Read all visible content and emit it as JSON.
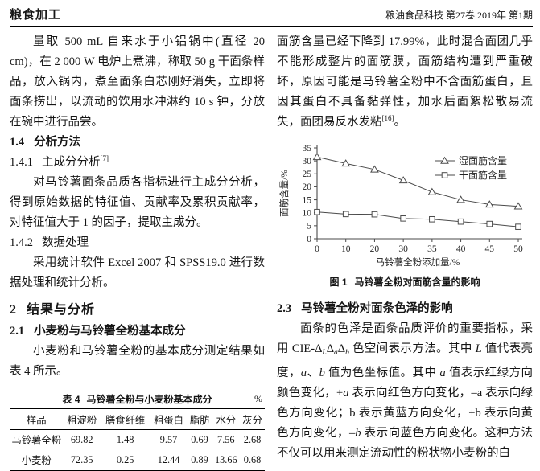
{
  "header": {
    "left": "粮食加工",
    "right": "粮油食品科技 第27卷 2019年 第1期"
  },
  "left_column": {
    "para1": "量取 500 mL 自来水于小铝锅中(直径 20 cm)，在 2 000 W 电炉上煮沸，称取 50 g 干面条样品，放入锅内，煮至面条白芯刚好消失，立即将面条捞出，以流动的饮用水冲淋约 10 s 钟，分放在碗中进行品尝。",
    "h14": {
      "num": "1.4",
      "title": "分析方法"
    },
    "h141": {
      "num": "1.4.1",
      "title": "主成分分析",
      "ref": "[7]"
    },
    "para2": "对马铃薯面条品质各指标进行主成分分析，得到原始数据的特征值、贡献率及累积贡献率，对特征值大于 1 的因子，提取主成分。",
    "h142": {
      "num": "1.4.2",
      "title": "数据处理"
    },
    "para3": "采用统计软件 Excel 2007 和 SPSS19.0 进行数据处理和统计分析。",
    "h2": {
      "num": "2",
      "title": "结果与分析"
    },
    "h21": {
      "num": "2.1",
      "title": "小麦粉与马铃薯全粉基本成分"
    },
    "para4": "小麦粉和马铃薯全粉的基本成分测定结果如表 4 所示。",
    "table": {
      "caption_label": "表 4",
      "caption_title": "马铃薯全粉与小麦粉基本成分",
      "unit": "%",
      "headers": [
        "样品",
        "粗淀粉",
        "膳食纤维",
        "粗蛋白",
        "脂肪",
        "水分",
        "灰分"
      ],
      "rows": [
        [
          "马铃薯全粉",
          "69.82",
          "1.48",
          "9.57",
          "0.69",
          "7.56",
          "2.68"
        ],
        [
          "小麦粉",
          "72.35",
          "0.25",
          "12.44",
          "0.89",
          "13.66",
          "0.68"
        ]
      ]
    }
  },
  "right_column": {
    "para1": "面筋含量已经下降到 17.99%，此时混合面团几乎不能形成整片的面筋膜，面筋结构遭到严重破坏，原因可能是马铃薯全粉中不含面筋蛋白，且因其蛋白不具备黏弹性，加水后面絮松散易流失，面团易反水发粘",
    "para1_ref": "[16]",
    "para1_end": "。",
    "figure_caption_label": "图 1",
    "figure_caption_title": "马铃薯全粉对面筋含量的影响",
    "h23": {
      "num": "2.3",
      "title": "马铃薯全粉对面条色泽的影响"
    },
    "para2_segments": [
      {
        "t": "面条的色泽是面条品质评价的重要指标，采用 CIE-Δ"
      },
      {
        "t": "L",
        "s": "sub"
      },
      {
        "t": "Δ"
      },
      {
        "t": "a",
        "s": "sub"
      },
      {
        "t": "Δ"
      },
      {
        "t": "b",
        "s": "sub"
      },
      {
        "t": " 色空间表示方法。其中 "
      },
      {
        "t": "L",
        "s": "i"
      },
      {
        "t": " 值代表亮度，"
      },
      {
        "t": "a",
        "s": "i"
      },
      {
        "t": "、"
      },
      {
        "t": "b",
        "s": "i"
      },
      {
        "t": " 值为色坐标值。其中 "
      },
      {
        "t": "a",
        "s": "i"
      },
      {
        "t": " 值表示红绿方向颜色变化，+"
      },
      {
        "t": "a",
        "s": "i"
      },
      {
        "t": " 表示向红色方向变化，–a 表示向绿色方向变化；b 表示黄蓝方向变化，+b 表示向黄色方向变化，–"
      },
      {
        "t": "b",
        "s": "i"
      },
      {
        "t": " 表示向蓝色方向变化。这种方法不仅可以用来测定流动性的粉状物小麦粉的白"
      }
    ]
  },
  "chart_data": {
    "type": "line",
    "title": "",
    "categories": [
      "0",
      "10",
      "20",
      "30",
      "35",
      "40",
      "45",
      "50"
    ],
    "series": [
      {
        "name": "湿面筋含量",
        "marker": "triangle",
        "values": [
          31.5,
          29.0,
          26.7,
          22.5,
          17.99,
          15.0,
          13.2,
          12.5
        ]
      },
      {
        "name": "干面筋含量",
        "marker": "square",
        "values": [
          10.3,
          9.5,
          9.4,
          7.8,
          7.5,
          6.6,
          5.7,
          4.6
        ]
      }
    ],
    "xlabel": "马铃薯全粉添加量/%",
    "ylabel": "面筋含量/%",
    "ylim": [
      0,
      35
    ],
    "ytick_step": 5,
    "grid": false,
    "legend_position": "upper right",
    "line_color": "#4a4a4a",
    "text_color": "#222222"
  }
}
